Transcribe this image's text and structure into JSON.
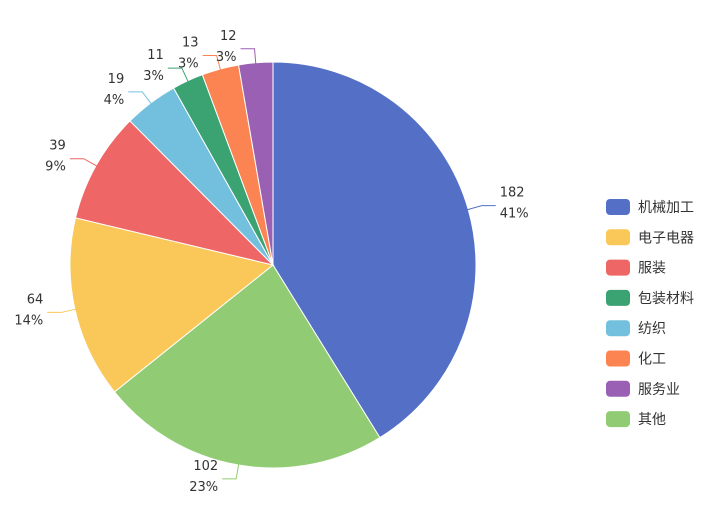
{
  "chart_data": {
    "type": "pie",
    "title": "",
    "slices": [
      {
        "name": "机械加工",
        "value": 182,
        "percent": "41%",
        "color": "#5470c6"
      },
      {
        "name": "其他",
        "value": 102,
        "percent": "23%",
        "color": "#91cc75"
      },
      {
        "name": "电子电器",
        "value": 64,
        "percent": "14%",
        "color": "#fac858"
      },
      {
        "name": "服装",
        "value": 39,
        "percent": "9%",
        "color": "#ee6666"
      },
      {
        "name": "纺织",
        "value": 19,
        "percent": "4%",
        "color": "#73c0de"
      },
      {
        "name": "包装材料",
        "value": 11,
        "percent": "3%",
        "color": "#3ba272"
      },
      {
        "name": "化工",
        "value": 13,
        "percent": "3%",
        "color": "#fc8452"
      },
      {
        "name": "服务业",
        "value": 12,
        "percent": "3%",
        "color": "#9a60b4"
      }
    ],
    "legend": {
      "position": "right",
      "items": [
        "机械加工",
        "电子电器",
        "服装",
        "包装材料",
        "纺织",
        "化工",
        "服务业",
        "其他"
      ]
    }
  }
}
